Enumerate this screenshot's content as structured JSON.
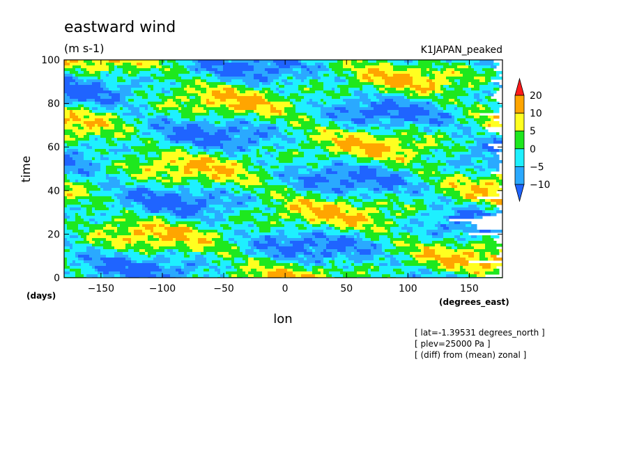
{
  "chart_data": {
    "type": "heatmap",
    "title": "eastward wind",
    "units": "(m s-1)",
    "run_label": "K1JAPAN_peaked",
    "xlabel": "lon",
    "x_unit_label": "(degrees_east)",
    "ylabel": "time",
    "y_unit_label": "(days)",
    "xlim": [
      -180,
      177
    ],
    "ylim": [
      0,
      100
    ],
    "x_ticks": [
      -150,
      -100,
      -50,
      0,
      50,
      100,
      150
    ],
    "y_ticks": [
      0,
      20,
      40,
      60,
      80,
      100
    ],
    "colorbar": {
      "levels": [
        -10,
        -5,
        0,
        5,
        10,
        20
      ],
      "colors": [
        "#1f64ff",
        "#2aa9ff",
        "#1ef0ff",
        "#1ee81e",
        "#ffff20",
        "#ffa500",
        "#ff1a1a"
      ],
      "extend": "both"
    },
    "notes": [
      "[ lat=-1.39531 degrees_north ]",
      "[ plev=25000 Pa ]",
      "[ (diff) from (mean) zonal ]"
    ],
    "grid": false
  }
}
